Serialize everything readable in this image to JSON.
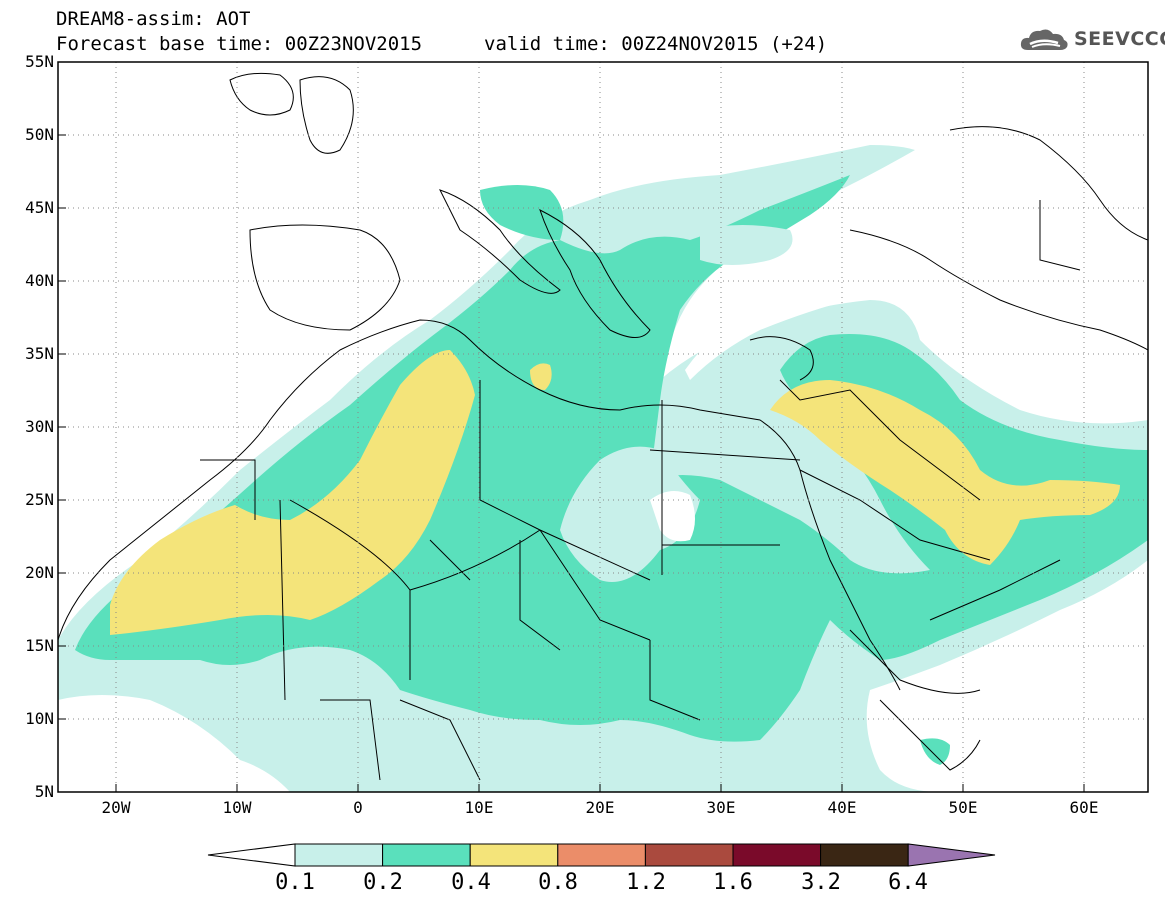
{
  "header": {
    "title": "DREAM8-assim: AOT",
    "base_time": "Forecast base time: 00Z23NOV2015",
    "valid_time": "valid time: 00Z24NOV2015 (+24)",
    "logo_text": "SEEVCCC"
  },
  "map": {
    "lat_labels": [
      "55N",
      "50N",
      "45N",
      "40N",
      "35N",
      "30N",
      "25N",
      "20N",
      "15N",
      "10N",
      "5N"
    ],
    "lon_labels": [
      "20W",
      "10W",
      "0",
      "10E",
      "20E",
      "30E",
      "40E",
      "50E",
      "60E"
    ],
    "lat_range": [
      5,
      55
    ],
    "lon_range": [
      -25,
      65
    ],
    "grid": "dotted"
  },
  "legend": {
    "labels": [
      "0.1",
      "0.2",
      "0.4",
      "0.8",
      "1.2",
      "1.6",
      "3.2",
      "6.4"
    ],
    "colors": [
      "#c8f0ea",
      "#5ae0bc",
      "#f4e47a",
      "#eb8d69",
      "#aa4a3e",
      "#7a0a2a",
      "#3a2614",
      "#9a74b0"
    ]
  }
}
